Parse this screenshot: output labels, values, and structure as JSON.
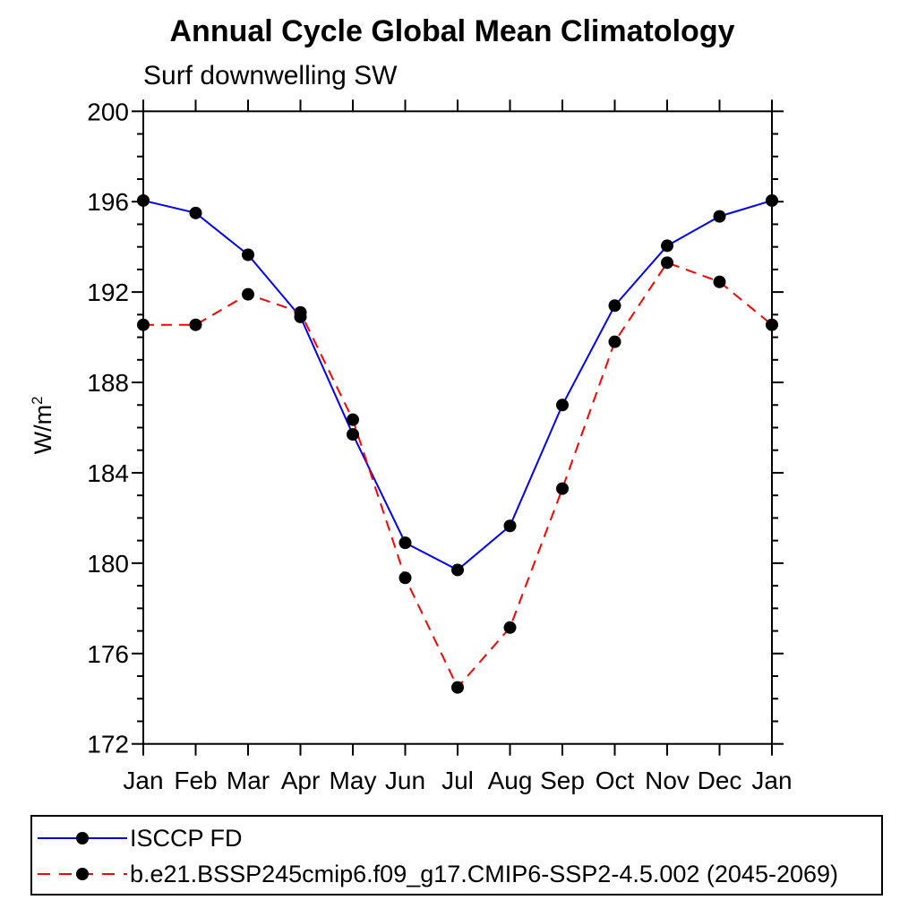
{
  "title": "Annual Cycle Global Mean Climatology",
  "subtitle": "Surf downwelling SW",
  "y_axis": {
    "label_base": "W/m",
    "label_sup": "2",
    "tick_labels": [
      "200",
      "196",
      "192",
      "188",
      "184",
      "180",
      "176",
      "172"
    ]
  },
  "x_axis": {
    "tick_labels": [
      "Jan",
      "Feb",
      "Mar",
      "Apr",
      "May",
      "Jun",
      "Jul",
      "Aug",
      "Sep",
      "Oct",
      "Nov",
      "Dec",
      "Jan"
    ]
  },
  "legend": {
    "items": [
      {
        "label": "ISCCP FD",
        "color": "#0000ff",
        "dash": "",
        "marker": "black-filled-circle"
      },
      {
        "label": "b.e21.BSSP245cmip6.f09_g17.CMIP6-SSP2-4.5.002 (2045-2069)",
        "color": "#ff0000",
        "dash": "14 10",
        "marker": "black-filled-circle"
      }
    ]
  },
  "chart_data": {
    "type": "line",
    "title": "Annual Cycle Global Mean Climatology",
    "subtitle": "Surf downwelling SW",
    "ylabel": "W/m²",
    "xlabel": "",
    "categories": [
      "Jan",
      "Feb",
      "Mar",
      "Apr",
      "May",
      "Jun",
      "Jul",
      "Aug",
      "Sep",
      "Oct",
      "Nov",
      "Dec",
      "Jan"
    ],
    "series": [
      {
        "name": "ISCCP FD",
        "color": "#0000ff",
        "line_style": "solid",
        "marker": "filled-circle",
        "marker_color": "#000000",
        "values": [
          196.05,
          195.5,
          193.65,
          190.9,
          185.7,
          180.9,
          179.7,
          181.65,
          187.0,
          191.4,
          194.05,
          195.35,
          196.05
        ]
      },
      {
        "name": "b.e21.BSSP245cmip6.f09_g17.CMIP6-SSP2-4.5.002 (2045-2069)",
        "color": "#ff0000",
        "line_style": "dashed",
        "marker": "filled-circle",
        "marker_color": "#000000",
        "values": [
          190.55,
          190.55,
          191.9,
          191.1,
          186.35,
          179.35,
          174.5,
          177.15,
          183.3,
          189.8,
          193.3,
          192.45,
          190.55
        ]
      }
    ],
    "ylim": [
      172,
      200
    ],
    "yticks_major": [
      172,
      176,
      180,
      184,
      188,
      192,
      196,
      200
    ],
    "ytick_minor_step": 1,
    "x_minor_ticks": false,
    "grid": false,
    "frame": "box-with-outward-ticks",
    "legend_position": "bottom-left-box"
  }
}
